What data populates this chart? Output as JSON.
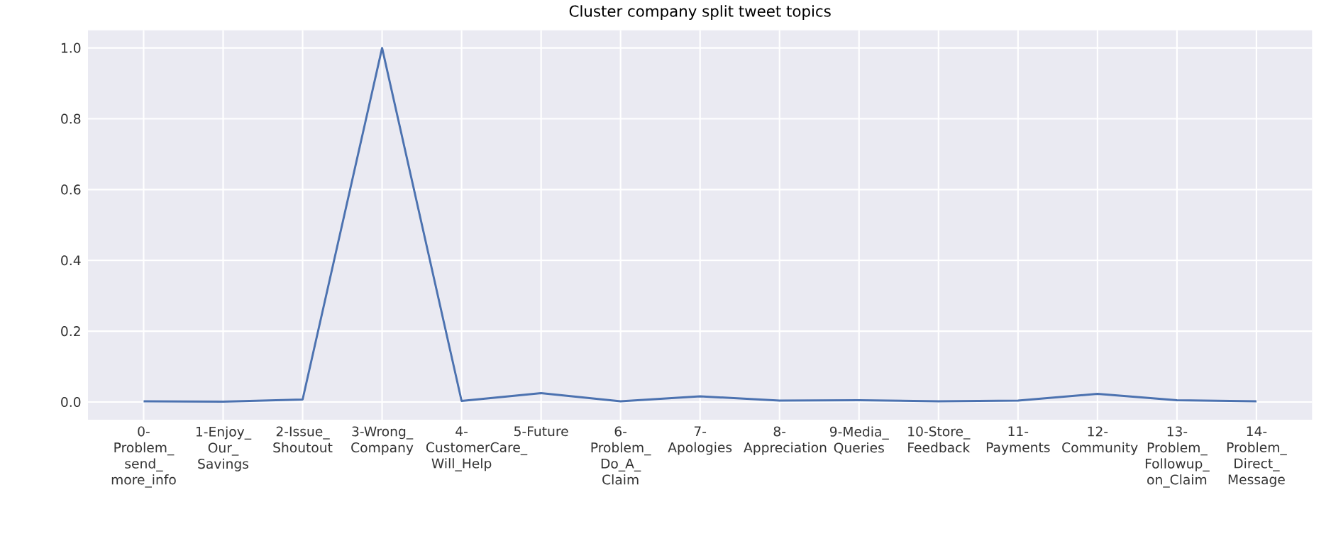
{
  "chart_data": {
    "type": "line",
    "title": "Cluster company split tweet topics",
    "categories": [
      "0-Problem_send_more_info",
      "1-Enjoy_Our_Savings",
      "2-Issue_Shoutout",
      "3-Wrong_Company",
      "4-CustomerCare_Will_Help",
      "5-Future",
      "6-Problem_Do_A_Claim",
      "7-Apologies",
      "8-Appreciation",
      "9-Media_Queries",
      "10-Store_Feedback",
      "11-Payments",
      "12-Community",
      "13-Problem_Followup_on_Claim",
      "14-Problem_Direct_Message"
    ],
    "series": [
      {
        "color": "#4c72b0",
        "values": [
          0.002,
          0.001,
          0.007,
          1.0,
          0.003,
          0.025,
          0.002,
          0.016,
          0.004,
          0.005,
          0.002,
          0.004,
          0.023,
          0.005,
          0.002
        ]
      }
    ],
    "ylim": [
      -0.05,
      1.05
    ],
    "yticks": [
      {
        "value": 0,
        "label": "0.0"
      },
      0.2,
      0.4,
      0.6,
      0.8,
      {
        "value": 1,
        "label": "1.0"
      }
    ],
    "grid": true,
    "marker": "none",
    "line_style": "solid"
  }
}
